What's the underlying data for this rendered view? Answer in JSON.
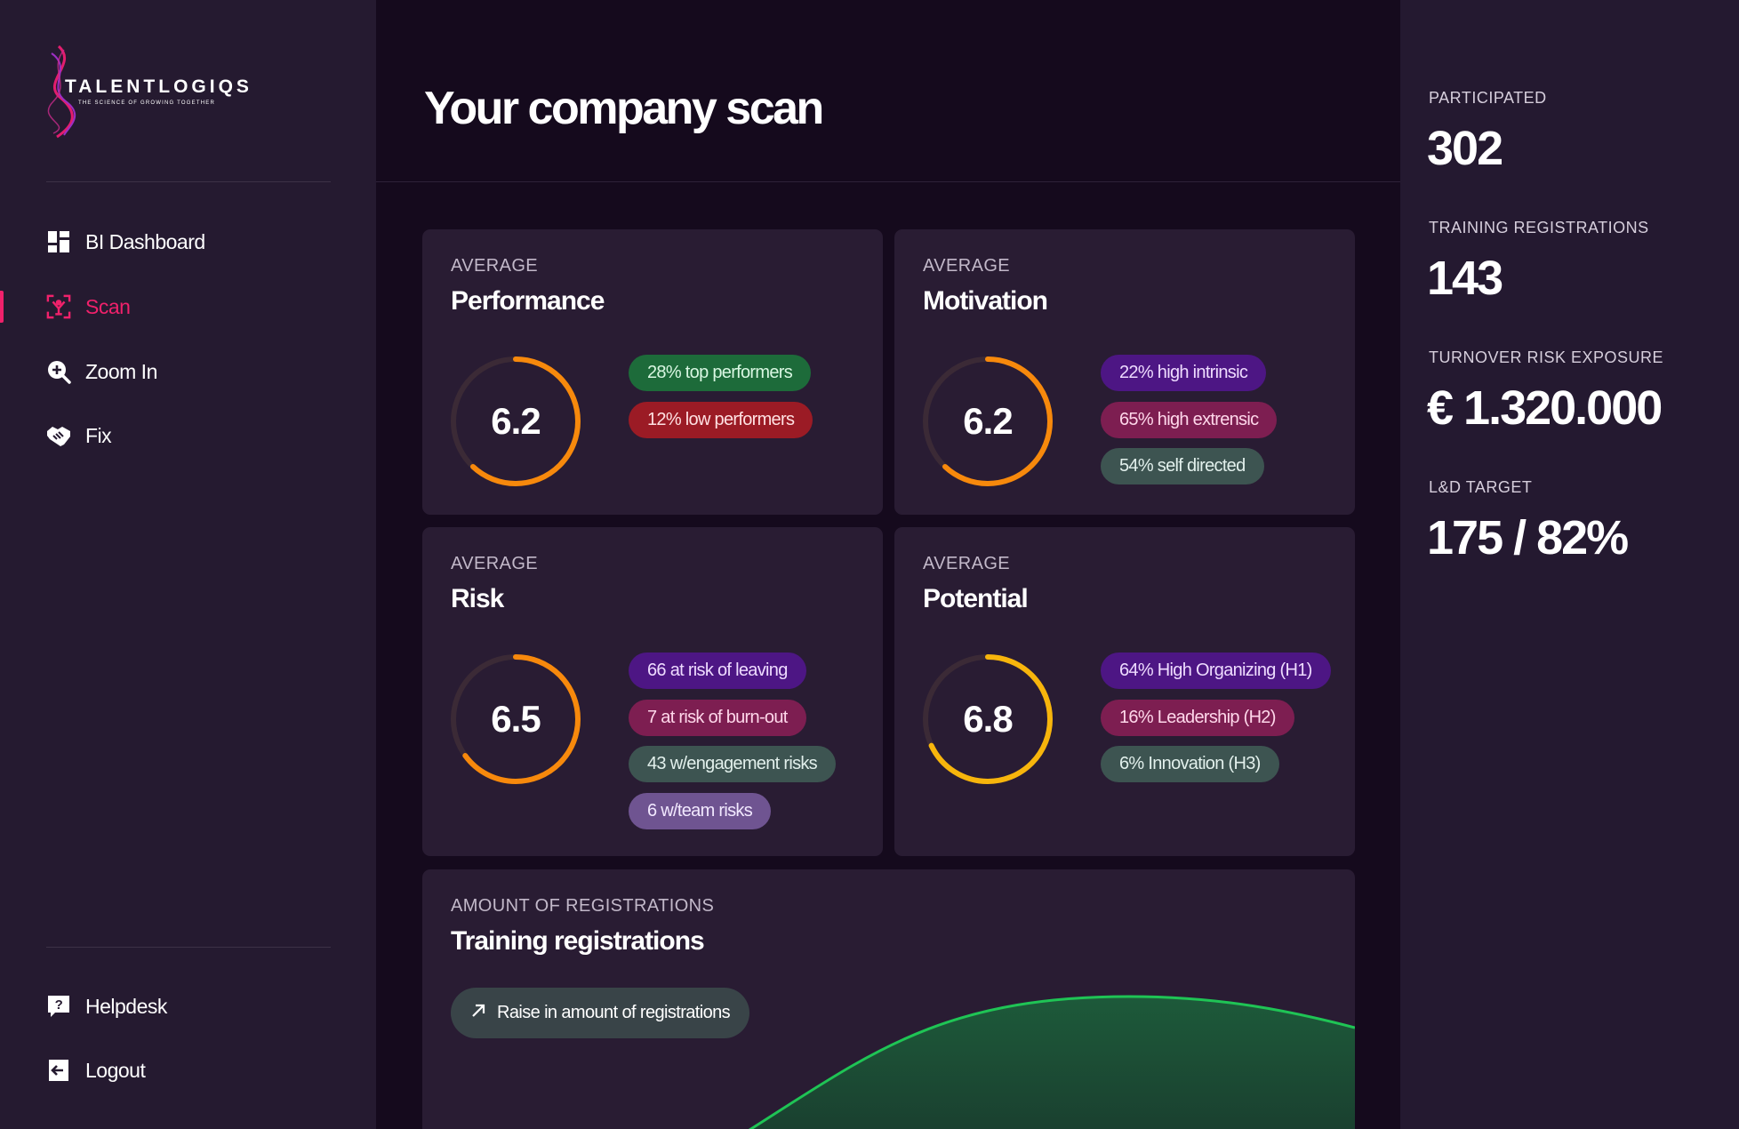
{
  "brand": {
    "name": "TALENTLOGIQS",
    "tagline": "THE SCIENCE OF GROWING TOGETHER"
  },
  "nav": {
    "items": [
      {
        "label": "BI Dashboard",
        "icon": "grid-icon"
      },
      {
        "label": "Scan",
        "icon": "scan-person-icon",
        "active": true
      },
      {
        "label": "Zoom In",
        "icon": "zoom-in-icon"
      },
      {
        "label": "Fix",
        "icon": "handshake-icon"
      }
    ],
    "footer": [
      {
        "label": "Helpdesk",
        "icon": "help-icon"
      },
      {
        "label": "Logout",
        "icon": "logout-icon"
      }
    ]
  },
  "header": {
    "title": "Your company scan"
  },
  "cards": {
    "performance": {
      "kicker": "AVERAGE",
      "title": "Performance",
      "value": "6.2",
      "score": 6.2,
      "pills": [
        "28% top performers",
        "12% low performers"
      ]
    },
    "motivation": {
      "kicker": "AVERAGE",
      "title": "Motivation",
      "value": "6.2",
      "score": 6.2,
      "pills": [
        "22% high intrinsic",
        "65% high extrensic",
        "54% self directed"
      ]
    },
    "risk": {
      "kicker": "AVERAGE",
      "title": "Risk",
      "value": "6.5",
      "score": 6.5,
      "pills": [
        "66 at risk of leaving",
        "7 at risk of burn-out",
        "43 w/engagement risks",
        "6 w/team risks"
      ]
    },
    "potential": {
      "kicker": "AVERAGE",
      "title": "Potential",
      "value": "6.8",
      "score": 6.8,
      "pills": [
        "64% High Organizing (H1)",
        "16% Leadership (H2)",
        "6% Innovation (H3)"
      ]
    },
    "training": {
      "kicker": "AMOUNT OF REGISTRATIONS",
      "title": "Training registrations",
      "cta": "Raise in amount of registrations"
    }
  },
  "stats": [
    {
      "label": "PARTICIPATED",
      "value": "302"
    },
    {
      "label": "TRAINING REGISTRATIONS",
      "value": "143"
    },
    {
      "label": "TURNOVER RISK EXPOSURE",
      "value": "€ 1.320.000"
    },
    {
      "label": "L&D TARGET",
      "value": "175 / 82%"
    }
  ],
  "colors": {
    "accent": "#f0216b",
    "gauge_orange": "#f7890c",
    "gauge_amber": "#f7b50c",
    "chart_line": "#1fc455"
  }
}
